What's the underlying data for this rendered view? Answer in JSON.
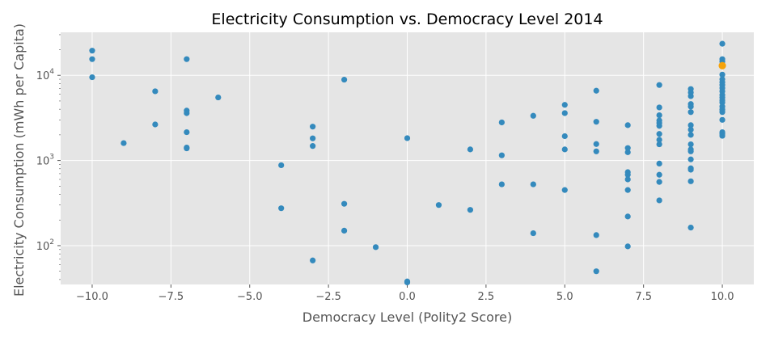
{
  "chart_data": {
    "type": "scatter",
    "title": "Electricity Consumption vs. Democracy Level 2014",
    "xlabel": "Democracy Level (Polity2 Score)",
    "ylabel": "Electricity Consumption (mWh per Capita)",
    "xlim": [
      -11,
      11
    ],
    "ylim": [
      35,
      32000
    ],
    "yscale": "log",
    "grid": true,
    "x_ticks": [
      -10.0,
      -7.5,
      -5.0,
      -2.5,
      0.0,
      2.5,
      5.0,
      7.5,
      10.0
    ],
    "x_tick_labels": [
      "−10.0",
      "−7.5",
      "−5.0",
      "−2.5",
      "0.0",
      "2.5",
      "5.0",
      "7.5",
      "10.0"
    ],
    "y_ticks": [
      {
        "value": 100,
        "base": "10",
        "exp": "2"
      },
      {
        "value": 1000,
        "base": "10",
        "exp": "3"
      },
      {
        "value": 10000,
        "base": "10",
        "exp": "4"
      }
    ],
    "colors": {
      "background": "#e5e5e5",
      "grid": "#ffffff",
      "point": "#348abd",
      "highlight": "#f5a30c",
      "text": "#555555"
    },
    "points": [
      {
        "x": -10,
        "y": 19500
      },
      {
        "x": -10,
        "y": 15500
      },
      {
        "x": -10,
        "y": 9500
      },
      {
        "x": -9,
        "y": 1600
      },
      {
        "x": -8,
        "y": 6500
      },
      {
        "x": -8,
        "y": 2650
      },
      {
        "x": -7,
        "y": 15500
      },
      {
        "x": -7,
        "y": 3850
      },
      {
        "x": -7,
        "y": 3600
      },
      {
        "x": -7,
        "y": 2150
      },
      {
        "x": -7,
        "y": 1420
      },
      {
        "x": -7,
        "y": 1390
      },
      {
        "x": -6,
        "y": 5500
      },
      {
        "x": -4,
        "y": 880
      },
      {
        "x": -4,
        "y": 275
      },
      {
        "x": -3,
        "y": 2500
      },
      {
        "x": -3,
        "y": 1820
      },
      {
        "x": -3,
        "y": 1480
      },
      {
        "x": -3,
        "y": 67
      },
      {
        "x": -2,
        "y": 8900
      },
      {
        "x": -2,
        "y": 310
      },
      {
        "x": -2,
        "y": 150
      },
      {
        "x": -1,
        "y": 96
      },
      {
        "x": 0,
        "y": 1830
      },
      {
        "x": 0,
        "y": 38
      },
      {
        "x": 0,
        "y": 37
      },
      {
        "x": 1,
        "y": 300
      },
      {
        "x": 2,
        "y": 1350
      },
      {
        "x": 2,
        "y": 263
      },
      {
        "x": 3,
        "y": 2800
      },
      {
        "x": 3,
        "y": 1150
      },
      {
        "x": 3,
        "y": 525
      },
      {
        "x": 4,
        "y": 3350
      },
      {
        "x": 4,
        "y": 525
      },
      {
        "x": 4,
        "y": 140
      },
      {
        "x": 5,
        "y": 4500
      },
      {
        "x": 5,
        "y": 3600
      },
      {
        "x": 5,
        "y": 1930
      },
      {
        "x": 5,
        "y": 1350
      },
      {
        "x": 5,
        "y": 450
      },
      {
        "x": 6,
        "y": 6600
      },
      {
        "x": 6,
        "y": 2850
      },
      {
        "x": 6,
        "y": 1560
      },
      {
        "x": 6,
        "y": 1280
      },
      {
        "x": 6,
        "y": 133
      },
      {
        "x": 6,
        "y": 50
      },
      {
        "x": 7,
        "y": 2600
      },
      {
        "x": 7,
        "y": 1400
      },
      {
        "x": 7,
        "y": 1250
      },
      {
        "x": 7,
        "y": 730
      },
      {
        "x": 7,
        "y": 680
      },
      {
        "x": 7,
        "y": 600
      },
      {
        "x": 7,
        "y": 450
      },
      {
        "x": 7,
        "y": 220
      },
      {
        "x": 7,
        "y": 98
      },
      {
        "x": 8,
        "y": 7700
      },
      {
        "x": 8,
        "y": 4200
      },
      {
        "x": 8,
        "y": 3400
      },
      {
        "x": 8,
        "y": 2950
      },
      {
        "x": 8,
        "y": 2750
      },
      {
        "x": 8,
        "y": 2550
      },
      {
        "x": 8,
        "y": 2050
      },
      {
        "x": 8,
        "y": 1750
      },
      {
        "x": 8,
        "y": 1550
      },
      {
        "x": 8,
        "y": 920
      },
      {
        "x": 8,
        "y": 680
      },
      {
        "x": 8,
        "y": 560
      },
      {
        "x": 8,
        "y": 340
      },
      {
        "x": 9,
        "y": 6900
      },
      {
        "x": 9,
        "y": 6300
      },
      {
        "x": 9,
        "y": 5700
      },
      {
        "x": 9,
        "y": 4600
      },
      {
        "x": 9,
        "y": 4300
      },
      {
        "x": 9,
        "y": 3700
      },
      {
        "x": 9,
        "y": 2600
      },
      {
        "x": 9,
        "y": 2300
      },
      {
        "x": 9,
        "y": 2000
      },
      {
        "x": 9,
        "y": 1550
      },
      {
        "x": 9,
        "y": 1350
      },
      {
        "x": 9,
        "y": 1280
      },
      {
        "x": 9,
        "y": 1030
      },
      {
        "x": 9,
        "y": 810
      },
      {
        "x": 9,
        "y": 780
      },
      {
        "x": 9,
        "y": 570
      },
      {
        "x": 9,
        "y": 163
      },
      {
        "x": 10,
        "y": 23500
      },
      {
        "x": 10,
        "y": 15500
      },
      {
        "x": 10,
        "y": 14500
      },
      {
        "x": 10,
        "y": 10200
      },
      {
        "x": 10,
        "y": 9000
      },
      {
        "x": 10,
        "y": 8300
      },
      {
        "x": 10,
        "y": 7700
      },
      {
        "x": 10,
        "y": 7100
      },
      {
        "x": 10,
        "y": 6500
      },
      {
        "x": 10,
        "y": 5900
      },
      {
        "x": 10,
        "y": 5500
      },
      {
        "x": 10,
        "y": 5100
      },
      {
        "x": 10,
        "y": 4800
      },
      {
        "x": 10,
        "y": 4300
      },
      {
        "x": 10,
        "y": 3950
      },
      {
        "x": 10,
        "y": 3700
      },
      {
        "x": 10,
        "y": 3000
      },
      {
        "x": 10,
        "y": 2150
      },
      {
        "x": 10,
        "y": 2050
      },
      {
        "x": 10,
        "y": 1950
      }
    ],
    "highlight_points": [
      {
        "x": 10,
        "y": 13000
      }
    ]
  }
}
